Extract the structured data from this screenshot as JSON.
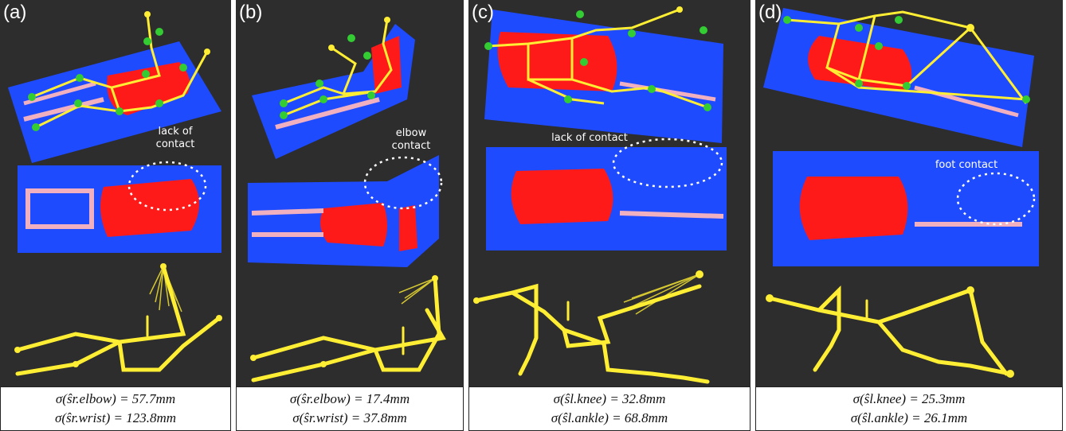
{
  "panels": [
    {
      "label": "(a)",
      "annotation": [
        "lack of",
        "contact"
      ],
      "caption": [
        "σ(ŝr.elbow) = 57.7mm",
        "σ(ŝr.wrist) = 123.8mm"
      ]
    },
    {
      "label": "(b)",
      "annotation": [
        "elbow",
        "contact"
      ],
      "caption": [
        "σ(ŝr.elbow) = 17.4mm",
        "σ(ŝr.wrist) = 37.8mm"
      ]
    },
    {
      "label": "(c)",
      "annotation": [
        "lack of contact"
      ],
      "caption": [
        "σ(ŝl.knee) = 32.8mm",
        "σ(ŝl.ankle) = 68.8mm"
      ]
    },
    {
      "label": "(d)",
      "annotation": [
        "foot contact"
      ],
      "caption": [
        "σ(ŝl.knee) = 25.3mm",
        "σ(ŝl.ankle) = 26.1mm"
      ]
    }
  ],
  "colors": {
    "background": "#2d2d2d",
    "mat": "#1f4bff",
    "pressure": "#ff1a1a",
    "skeleton": "#ffee33",
    "joint_marker": "#33cc33"
  }
}
